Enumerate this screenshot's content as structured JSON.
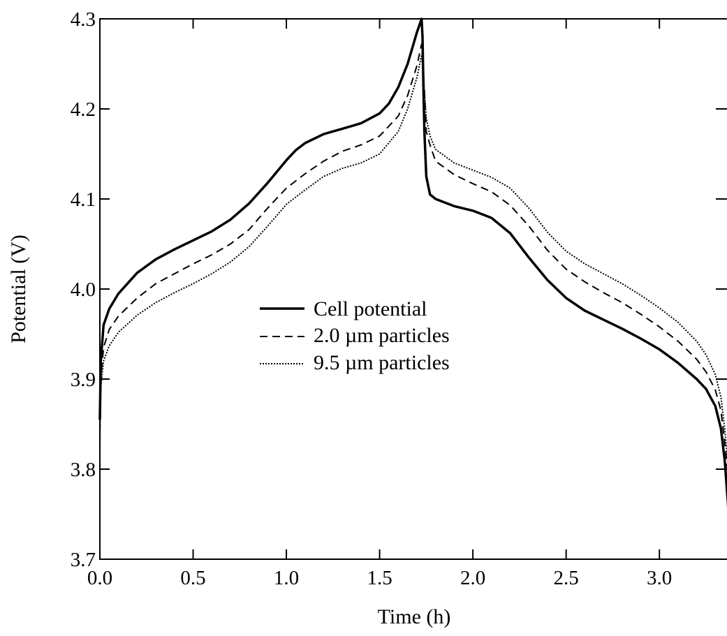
{
  "chart_data": {
    "type": "line",
    "xlabel": "Time (h)",
    "ylabel": "Potential (V)",
    "xlim": [
      0,
      3.37
    ],
    "ylim": [
      3.7,
      4.3
    ],
    "x_ticks": [
      "0.0",
      "0.5",
      "1.0",
      "1.5",
      "2.0",
      "2.5",
      "3.0"
    ],
    "y_ticks": [
      "3.7",
      "3.8",
      "3.9",
      "4.0",
      "4.1",
      "4.2",
      "4.3"
    ],
    "grid": false,
    "legend_position": "center",
    "series": [
      {
        "name": "Cell potential",
        "style": "solid",
        "x": [
          0.0,
          0.005,
          0.02,
          0.05,
          0.1,
          0.2,
          0.3,
          0.4,
          0.5,
          0.6,
          0.7,
          0.8,
          0.9,
          1.0,
          1.05,
          1.1,
          1.2,
          1.3,
          1.4,
          1.5,
          1.55,
          1.6,
          1.65,
          1.7,
          1.725,
          1.73,
          1.735,
          1.74,
          1.75,
          1.77,
          1.8,
          1.9,
          2.0,
          2.1,
          2.2,
          2.3,
          2.4,
          2.5,
          2.6,
          2.7,
          2.8,
          2.9,
          3.0,
          3.1,
          3.2,
          3.25,
          3.3,
          3.33,
          3.35,
          3.37
        ],
        "y": [
          3.855,
          3.92,
          3.96,
          3.978,
          3.995,
          4.018,
          4.033,
          4.044,
          4.054,
          4.064,
          4.077,
          4.095,
          4.118,
          4.143,
          4.154,
          4.162,
          4.172,
          4.178,
          4.184,
          4.195,
          4.206,
          4.224,
          4.25,
          4.285,
          4.3,
          4.28,
          4.22,
          4.175,
          4.125,
          4.105,
          4.1,
          4.092,
          4.087,
          4.079,
          4.062,
          4.035,
          4.01,
          3.99,
          3.976,
          3.966,
          3.956,
          3.945,
          3.933,
          3.918,
          3.9,
          3.889,
          3.87,
          3.845,
          3.81,
          3.755
        ]
      },
      {
        "name": "2.0 µm particles",
        "style": "dashed",
        "x": [
          0.0,
          0.005,
          0.02,
          0.05,
          0.1,
          0.2,
          0.3,
          0.4,
          0.5,
          0.6,
          0.7,
          0.8,
          0.9,
          1.0,
          1.1,
          1.2,
          1.3,
          1.4,
          1.5,
          1.6,
          1.65,
          1.7,
          1.725,
          1.735,
          1.75,
          1.77,
          1.8,
          1.9,
          2.0,
          2.1,
          2.2,
          2.3,
          2.4,
          2.5,
          2.6,
          2.7,
          2.8,
          2.9,
          3.0,
          3.1,
          3.2,
          3.25,
          3.3,
          3.33,
          3.35,
          3.37
        ],
        "y": [
          3.84,
          3.9,
          3.935,
          3.955,
          3.97,
          3.99,
          4.006,
          4.017,
          4.028,
          4.038,
          4.05,
          4.066,
          4.09,
          4.112,
          4.128,
          4.142,
          4.153,
          4.16,
          4.17,
          4.192,
          4.215,
          4.248,
          4.272,
          4.24,
          4.175,
          4.16,
          4.142,
          4.127,
          4.117,
          4.108,
          4.093,
          4.07,
          4.043,
          4.022,
          4.008,
          3.996,
          3.985,
          3.972,
          3.958,
          3.942,
          3.922,
          3.908,
          3.888,
          3.865,
          3.83,
          3.79
        ]
      },
      {
        "name": "9.5 µm particles",
        "style": "dotted",
        "x": [
          0.0,
          0.005,
          0.02,
          0.05,
          0.1,
          0.2,
          0.3,
          0.4,
          0.5,
          0.6,
          0.7,
          0.8,
          0.9,
          1.0,
          1.1,
          1.2,
          1.3,
          1.4,
          1.5,
          1.6,
          1.65,
          1.7,
          1.725,
          1.735,
          1.75,
          1.77,
          1.8,
          1.9,
          2.0,
          2.1,
          2.2,
          2.3,
          2.4,
          2.5,
          2.6,
          2.7,
          2.8,
          2.9,
          3.0,
          3.1,
          3.2,
          3.25,
          3.3,
          3.33,
          3.35,
          3.37
        ],
        "y": [
          3.83,
          3.89,
          3.92,
          3.937,
          3.952,
          3.971,
          3.985,
          3.996,
          4.006,
          4.017,
          4.03,
          4.047,
          4.07,
          4.094,
          4.11,
          4.125,
          4.134,
          4.14,
          4.15,
          4.175,
          4.2,
          4.235,
          4.26,
          4.235,
          4.19,
          4.17,
          4.155,
          4.14,
          4.132,
          4.124,
          4.112,
          4.09,
          4.063,
          4.042,
          4.028,
          4.017,
          4.006,
          3.993,
          3.979,
          3.963,
          3.942,
          3.927,
          3.905,
          3.88,
          3.845,
          3.8
        ]
      }
    ]
  }
}
